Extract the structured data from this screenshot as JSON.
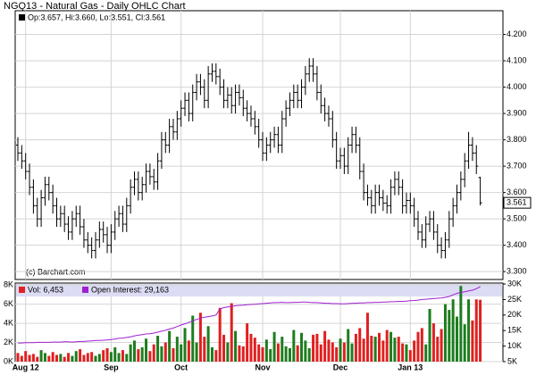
{
  "chart_data": [
    {
      "type": "ohlc",
      "title": "NGQ13 - Natural Gas - Daily OHLC Chart",
      "header": "Op:3.657, Hi:3.660, Lo:3.551, Cl:3.561",
      "watermark": "(c) Barchart.com",
      "last_label": "3.561",
      "color": "#000000",
      "grid": true,
      "categories": [
        null,
        null,
        "Aug 12",
        null,
        null,
        null,
        null,
        null,
        null,
        null,
        null,
        null,
        null,
        null,
        null,
        null,
        null,
        null,
        null,
        null,
        null,
        null,
        null,
        null,
        "Sep",
        null,
        null,
        null,
        null,
        null,
        null,
        null,
        null,
        null,
        null,
        null,
        null,
        null,
        null,
        null,
        null,
        null,
        "Oct",
        null,
        null,
        null,
        null,
        null,
        null,
        null,
        null,
        null,
        null,
        null,
        null,
        null,
        null,
        null,
        null,
        null,
        null,
        null,
        null,
        "Nov",
        null,
        null,
        null,
        null,
        null,
        null,
        null,
        null,
        null,
        null,
        null,
        null,
        null,
        null,
        null,
        null,
        null,
        null,
        null,
        "Dec",
        null,
        null,
        null,
        null,
        null,
        null,
        null,
        null,
        null,
        null,
        null,
        null,
        null,
        null,
        null,
        null,
        null,
        "Jan 13",
        null,
        null,
        null,
        null,
        null,
        null,
        null,
        null,
        null,
        null,
        null,
        null,
        null,
        null,
        null,
        null,
        null,
        null
      ],
      "bars": [
        [
          3.78,
          3.81,
          3.72,
          3.75
        ],
        [
          3.75,
          3.78,
          3.69,
          3.72
        ],
        [
          3.72,
          3.75,
          3.65,
          3.68
        ],
        [
          3.68,
          3.71,
          3.59,
          3.62
        ],
        [
          3.62,
          3.65,
          3.52,
          3.55
        ],
        [
          3.55,
          3.58,
          3.47,
          3.5
        ],
        [
          3.5,
          3.61,
          3.47,
          3.58
        ],
        [
          3.58,
          3.66,
          3.55,
          3.63
        ],
        [
          3.63,
          3.66,
          3.57,
          3.6
        ],
        [
          3.6,
          3.63,
          3.52,
          3.55
        ],
        [
          3.55,
          3.58,
          3.47,
          3.5
        ],
        [
          3.5,
          3.55,
          3.47,
          3.52
        ],
        [
          3.52,
          3.55,
          3.45,
          3.48
        ],
        [
          3.48,
          3.51,
          3.42,
          3.45
        ],
        [
          3.45,
          3.53,
          3.42,
          3.5
        ],
        [
          3.5,
          3.55,
          3.47,
          3.52
        ],
        [
          3.52,
          3.55,
          3.44,
          3.47
        ],
        [
          3.47,
          3.5,
          3.39,
          3.42
        ],
        [
          3.42,
          3.45,
          3.37,
          3.4
        ],
        [
          3.4,
          3.43,
          3.35,
          3.38
        ],
        [
          3.38,
          3.45,
          3.35,
          3.42
        ],
        [
          3.42,
          3.49,
          3.39,
          3.46
        ],
        [
          3.46,
          3.49,
          3.41,
          3.44
        ],
        [
          3.44,
          3.47,
          3.37,
          3.4
        ],
        [
          3.4,
          3.48,
          3.37,
          3.45
        ],
        [
          3.45,
          3.53,
          3.42,
          3.5
        ],
        [
          3.5,
          3.55,
          3.47,
          3.52
        ],
        [
          3.52,
          3.55,
          3.45,
          3.48
        ],
        [
          3.48,
          3.58,
          3.45,
          3.55
        ],
        [
          3.55,
          3.65,
          3.52,
          3.62
        ],
        [
          3.62,
          3.68,
          3.59,
          3.65
        ],
        [
          3.65,
          3.68,
          3.57,
          3.6
        ],
        [
          3.6,
          3.66,
          3.57,
          3.63
        ],
        [
          3.63,
          3.71,
          3.6,
          3.68
        ],
        [
          3.68,
          3.71,
          3.63,
          3.66
        ],
        [
          3.66,
          3.69,
          3.61,
          3.64
        ],
        [
          3.64,
          3.75,
          3.61,
          3.72
        ],
        [
          3.72,
          3.83,
          3.69,
          3.8
        ],
        [
          3.8,
          3.83,
          3.75,
          3.78
        ],
        [
          3.78,
          3.88,
          3.75,
          3.85
        ],
        [
          3.85,
          3.88,
          3.8,
          3.83
        ],
        [
          3.83,
          3.91,
          3.8,
          3.88
        ],
        [
          3.88,
          3.95,
          3.85,
          3.92
        ],
        [
          3.92,
          3.98,
          3.89,
          3.95
        ],
        [
          3.95,
          3.98,
          3.87,
          3.9
        ],
        [
          3.9,
          4.01,
          3.87,
          3.98
        ],
        [
          3.98,
          4.05,
          3.95,
          4.02
        ],
        [
          4.02,
          4.05,
          3.97,
          4.0
        ],
        [
          4.0,
          4.03,
          3.92,
          3.95
        ],
        [
          3.95,
          4.08,
          3.92,
          4.05
        ],
        [
          4.05,
          4.09,
          4.02,
          4.06
        ],
        [
          4.06,
          4.09,
          4.01,
          4.04
        ],
        [
          4.04,
          4.07,
          3.97,
          4.0
        ],
        [
          4.0,
          4.03,
          3.92,
          3.95
        ],
        [
          3.95,
          4.0,
          3.92,
          3.97
        ],
        [
          3.97,
          4.0,
          3.9,
          3.93
        ],
        [
          3.93,
          4.01,
          3.9,
          3.98
        ],
        [
          3.98,
          4.01,
          3.93,
          3.96
        ],
        [
          3.96,
          3.99,
          3.89,
          3.92
        ],
        [
          3.92,
          3.95,
          3.87,
          3.9
        ],
        [
          3.9,
          3.93,
          3.85,
          3.88
        ],
        [
          3.88,
          3.91,
          3.82,
          3.85
        ],
        [
          3.85,
          3.88,
          3.77,
          3.8
        ],
        [
          3.8,
          3.83,
          3.72,
          3.75
        ],
        [
          3.75,
          3.81,
          3.72,
          3.78
        ],
        [
          3.78,
          3.83,
          3.75,
          3.8
        ],
        [
          3.8,
          3.85,
          3.77,
          3.82
        ],
        [
          3.82,
          3.85,
          3.75,
          3.78
        ],
        [
          3.78,
          3.91,
          3.75,
          3.88
        ],
        [
          3.88,
          3.95,
          3.85,
          3.92
        ],
        [
          3.92,
          3.98,
          3.89,
          3.95
        ],
        [
          3.95,
          4.01,
          3.92,
          3.98
        ],
        [
          3.98,
          4.01,
          3.92,
          3.95
        ],
        [
          3.95,
          4.03,
          3.92,
          4.0
        ],
        [
          4.0,
          4.08,
          3.97,
          4.05
        ],
        [
          4.05,
          4.11,
          4.02,
          4.08
        ],
        [
          4.08,
          4.11,
          4.02,
          4.05
        ],
        [
          4.05,
          4.08,
          3.95,
          3.98
        ],
        [
          3.98,
          4.01,
          3.9,
          3.93
        ],
        [
          3.93,
          3.96,
          3.87,
          3.9
        ],
        [
          3.9,
          3.93,
          3.85,
          3.88
        ],
        [
          3.88,
          3.91,
          3.77,
          3.8
        ],
        [
          3.8,
          3.83,
          3.69,
          3.72
        ],
        [
          3.72,
          3.77,
          3.69,
          3.74
        ],
        [
          3.74,
          3.77,
          3.67,
          3.7
        ],
        [
          3.7,
          3.81,
          3.67,
          3.78
        ],
        [
          3.78,
          3.85,
          3.75,
          3.82
        ],
        [
          3.82,
          3.85,
          3.75,
          3.78
        ],
        [
          3.78,
          3.81,
          3.65,
          3.68
        ],
        [
          3.68,
          3.71,
          3.57,
          3.6
        ],
        [
          3.6,
          3.63,
          3.55,
          3.58
        ],
        [
          3.58,
          3.61,
          3.52,
          3.55
        ],
        [
          3.55,
          3.63,
          3.52,
          3.6
        ],
        [
          3.6,
          3.63,
          3.55,
          3.58
        ],
        [
          3.58,
          3.61,
          3.53,
          3.56
        ],
        [
          3.56,
          3.59,
          3.52,
          3.55
        ],
        [
          3.55,
          3.65,
          3.52,
          3.62
        ],
        [
          3.62,
          3.68,
          3.59,
          3.65
        ],
        [
          3.65,
          3.68,
          3.59,
          3.62
        ],
        [
          3.62,
          3.65,
          3.52,
          3.55
        ],
        [
          3.55,
          3.6,
          3.52,
          3.57
        ],
        [
          3.57,
          3.6,
          3.52,
          3.55
        ],
        [
          3.55,
          3.58,
          3.47,
          3.5
        ],
        [
          3.5,
          3.53,
          3.42,
          3.45
        ],
        [
          3.45,
          3.48,
          3.39,
          3.42
        ],
        [
          3.42,
          3.51,
          3.39,
          3.48
        ],
        [
          3.48,
          3.53,
          3.45,
          3.5
        ],
        [
          3.5,
          3.53,
          3.42,
          3.45
        ],
        [
          3.45,
          3.48,
          3.37,
          3.4
        ],
        [
          3.4,
          3.43,
          3.35,
          3.38
        ],
        [
          3.38,
          3.45,
          3.35,
          3.42
        ],
        [
          3.42,
          3.53,
          3.39,
          3.5
        ],
        [
          3.5,
          3.58,
          3.47,
          3.55
        ],
        [
          3.55,
          3.63,
          3.52,
          3.6
        ],
        [
          3.6,
          3.68,
          3.57,
          3.65
        ],
        [
          3.65,
          3.75,
          3.62,
          3.72
        ],
        [
          3.72,
          3.83,
          3.69,
          3.78
        ],
        [
          3.78,
          3.81,
          3.72,
          3.75
        ],
        [
          3.75,
          3.78,
          3.67,
          3.7
        ],
        [
          3.657,
          3.66,
          3.551,
          3.561
        ]
      ],
      "ylim": [
        3.27,
        4.29
      ],
      "yticks": [
        {
          "value": 3.3,
          "label": "3.300"
        },
        {
          "value": 3.4,
          "label": "3.400"
        },
        {
          "value": 3.5,
          "label": "3.500"
        },
        {
          "value": 3.6,
          "label": "3.600"
        },
        {
          "value": 3.7,
          "label": "3.700"
        },
        {
          "value": 3.8,
          "label": "3.800"
        },
        {
          "value": 3.9,
          "label": "3.900"
        },
        {
          "value": 4.0,
          "label": "4.000"
        },
        {
          "value": 4.1,
          "label": "4.100"
        },
        {
          "value": 4.2,
          "label": "4.200"
        }
      ]
    },
    {
      "type": "bar",
      "up_color": "#1e7d1e",
      "grid": true,
      "series": [
        {
          "name": "Vol: 6,453",
          "color": "#e02020",
          "values": [
            900,
            600,
            1100,
            700,
            800,
            500,
            1200,
            900,
            600,
            1000,
            700,
            800,
            500,
            900,
            600,
            1100,
            1300,
            700,
            900,
            1000,
            600,
            800,
            1200,
            1400,
            1000,
            1500,
            900,
            1200,
            800,
            1800,
            2200,
            1300,
            1500,
            2400,
            1100,
            1800,
            2700,
            1600,
            2000,
            3200,
            1400,
            2600,
            1800,
            3500,
            2200,
            4800,
            2000,
            5100,
            2600,
            3700,
            1500,
            1200,
            5600,
            2800,
            2000,
            6100,
            3200,
            1700,
            1600,
            4000,
            2900,
            2500,
            1800,
            1500,
            2300,
            1300,
            3100,
            1900,
            2600,
            1600,
            1400,
            3300,
            1700,
            3000,
            2200,
            1400,
            2800,
            2900,
            1800,
            3200,
            2300,
            2000,
            1500,
            2400,
            2000,
            3400,
            1900,
            2900,
            3500,
            2400,
            5100,
            2700,
            2600,
            3000,
            2200,
            3300,
            3100,
            2500,
            2600,
            1900,
            1800,
            1200,
            2200,
            3100,
            3500,
            1800,
            5500,
            4000,
            2600,
            3400,
            6000,
            5400,
            6500,
            4700,
            7900,
            3900,
            6500,
            4300,
            6500,
            6453
          ]
        },
        {
          "name": "Open Interest: 29,163",
          "color": "#a020d0",
          "axis": "y2",
          "values": [
            11000,
            11000,
            11100,
            11100,
            11100,
            11200,
            11200,
            11200,
            11200,
            11300,
            11300,
            11300,
            11400,
            11400,
            11300,
            11400,
            11500,
            11500,
            11600,
            11700,
            11800,
            11800,
            11900,
            12000,
            12100,
            12300,
            12500,
            12600,
            12800,
            13000,
            13300,
            13500,
            13700,
            13900,
            14000,
            14200,
            14500,
            14800,
            15100,
            15500,
            15800,
            16300,
            16800,
            17200,
            17600,
            18200,
            18600,
            19000,
            19300,
            19500,
            19700,
            20000,
            22000,
            22400,
            22600,
            22800,
            23000,
            23100,
            23200,
            23300,
            23400,
            23500,
            23600,
            23700,
            23800,
            23900,
            24000,
            24000,
            24100,
            24000,
            24000,
            24100,
            24100,
            24200,
            24200,
            24100,
            24000,
            24000,
            23900,
            23800,
            23800,
            23700,
            23700,
            23600,
            23600,
            23700,
            23800,
            23800,
            23900,
            23900,
            24000,
            24000,
            24100,
            24100,
            24200,
            24200,
            24300,
            24300,
            24400,
            24400,
            24500,
            24600,
            24700,
            24800,
            25000,
            25100,
            25200,
            25300,
            25400,
            25500,
            25700,
            26000,
            26500,
            27000,
            27300,
            27500,
            27800,
            28000,
            28500,
            29163
          ]
        }
      ],
      "ylim": [
        0,
        8200
      ],
      "yticks": [
        {
          "value": 0,
          "label": "0K"
        },
        {
          "value": 2000,
          "label": "2K"
        },
        {
          "value": 4000,
          "label": "4K"
        },
        {
          "value": 6000,
          "label": "6K"
        },
        {
          "value": 8000,
          "label": "8K"
        }
      ],
      "y2lim": [
        5000,
        30300
      ],
      "y2ticks": [
        {
          "value": 5000,
          "label": "5K"
        },
        {
          "value": 10000,
          "label": "10K"
        },
        {
          "value": 15000,
          "label": "15K"
        },
        {
          "value": 20000,
          "label": "20K"
        },
        {
          "value": 25000,
          "label": "25K"
        },
        {
          "value": 30000,
          "label": "30K"
        }
      ]
    }
  ]
}
